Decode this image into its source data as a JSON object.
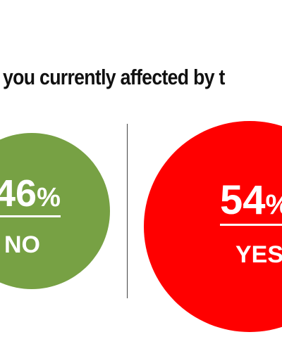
{
  "chart_data": {
    "type": "pie",
    "title": "you currently affected by t",
    "categories": [
      "NO",
      "YES"
    ],
    "values": [
      46,
      54
    ],
    "unit": "%",
    "colors": [
      "#77a144",
      "#ff0000"
    ],
    "legend": "none"
  }
}
